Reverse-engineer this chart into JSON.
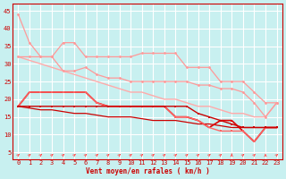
{
  "xlabel": "Vent moyen/en rafales ( km/h )",
  "bg_color": "#c8f0f0",
  "grid_color": "#ffffff",
  "xlim": [
    -0.5,
    23.5
  ],
  "ylim": [
    3,
    47
  ],
  "yticks": [
    5,
    10,
    15,
    20,
    25,
    30,
    35,
    40,
    45
  ],
  "xticks": [
    0,
    1,
    2,
    3,
    4,
    5,
    6,
    7,
    8,
    9,
    10,
    11,
    12,
    13,
    14,
    15,
    16,
    17,
    18,
    19,
    20,
    21,
    22,
    23
  ],
  "x": [
    0,
    1,
    2,
    3,
    4,
    5,
    6,
    7,
    8,
    9,
    10,
    11,
    12,
    13,
    14,
    15,
    16,
    17,
    18,
    19,
    20,
    21,
    22,
    23
  ],
  "line_light_rafales": [
    44,
    36,
    32,
    32,
    36,
    36,
    32,
    32,
    32,
    32,
    32,
    33,
    33,
    33,
    33,
    29,
    29,
    29,
    25,
    25,
    25,
    22,
    19,
    19
  ],
  "line_light_rafales2": [
    32,
    32,
    32,
    32,
    28,
    28,
    29,
    27,
    26,
    26,
    25,
    25,
    25,
    25,
    25,
    25,
    24,
    24,
    23,
    23,
    22,
    19,
    15,
    19
  ],
  "line_light_trend": [
    32,
    31,
    30,
    29,
    28,
    27,
    26,
    25,
    24,
    23,
    22,
    22,
    21,
    20,
    20,
    19,
    18,
    18,
    17,
    16,
    16,
    15,
    15,
    19
  ],
  "line_dark_main": [
    18,
    22,
    22,
    22,
    22,
    22,
    22,
    19,
    18,
    18,
    18,
    18,
    18,
    18,
    15,
    15,
    14,
    12,
    14,
    14,
    11,
    8,
    12,
    12
  ],
  "line_dark_flat": [
    18,
    18,
    18,
    18,
    18,
    18,
    18,
    18,
    18,
    18,
    18,
    18,
    18,
    18,
    18,
    18,
    16,
    15,
    14,
    13,
    12,
    12,
    12,
    12
  ],
  "line_dark_trend": [
    18,
    17.5,
    17,
    17,
    16.5,
    16,
    16,
    15.5,
    15,
    15,
    15,
    14.5,
    14,
    14,
    14,
    13.5,
    13,
    13,
    12.5,
    12,
    12,
    12,
    12,
    12
  ],
  "line_medium_mix": [
    18,
    22,
    22,
    22,
    22,
    22,
    22,
    19,
    18,
    18,
    18,
    18,
    18,
    18,
    15,
    15,
    14,
    12,
    11,
    11,
    11,
    8,
    12,
    12
  ],
  "arrow_angles": [
    45,
    45,
    45,
    45,
    45,
    45,
    45,
    45,
    45,
    45,
    45,
    45,
    45,
    45,
    45,
    45,
    45,
    45,
    45,
    90,
    45,
    45,
    90,
    45
  ]
}
